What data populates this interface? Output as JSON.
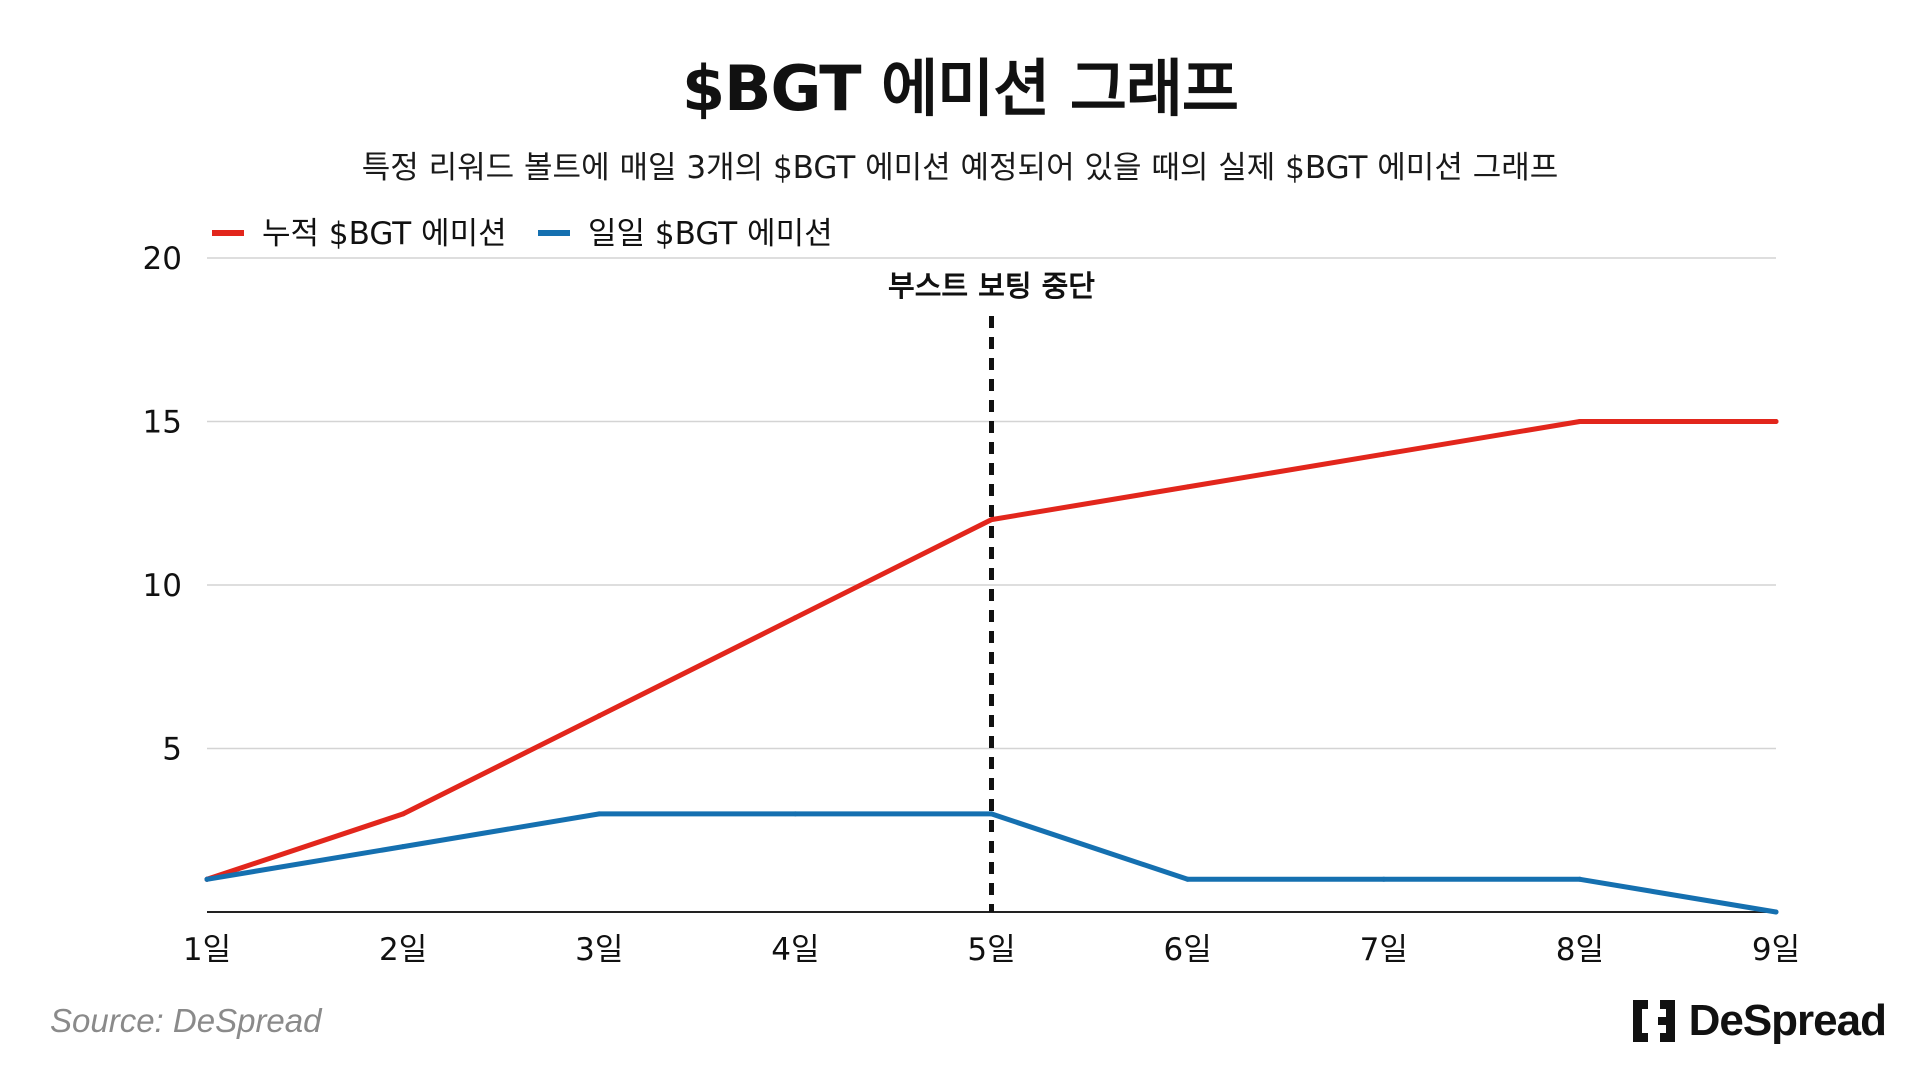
{
  "chart_data": {
    "type": "line",
    "title": "$BGT 에미션 그래프",
    "subtitle": "특정 리워드 볼트에 매일 3개의 $BGT 에미션 예정되어 있을 때의 실제 $BGT 에미션 그래프",
    "categories": [
      "1일",
      "2일",
      "3일",
      "4일",
      "5일",
      "6일",
      "7일",
      "8일",
      "9일"
    ],
    "series": [
      {
        "name": "누적 $BGT 에미션",
        "color": "#E2261C",
        "values": [
          1,
          3,
          6,
          9,
          12,
          13,
          14,
          15,
          15
        ]
      },
      {
        "name": "일일 $BGT 에미션",
        "color": "#1570B0",
        "values": [
          1,
          2,
          3,
          3,
          3,
          1,
          1,
          1,
          0
        ]
      }
    ],
    "ylim": [
      0,
      20
    ],
    "yticks": [
      5,
      10,
      15,
      20
    ],
    "grid": true,
    "legend": "top-left",
    "annotation": {
      "label": "부스트 보팅 중단",
      "at_category": "5일",
      "style": "dashed-vertical-line"
    }
  },
  "source": "Source: DeSpread",
  "logo": {
    "text": "DeSpread",
    "color": "#111111"
  }
}
